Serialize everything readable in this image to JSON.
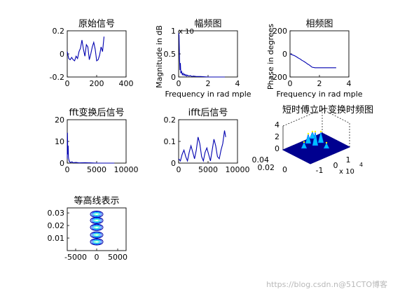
{
  "chart_data": [
    {
      "type": "line",
      "title": "原始信号",
      "xlim": [
        0,
        400
      ],
      "ylim": [
        -0.2,
        0.2
      ],
      "x_ticks": [
        0,
        200,
        400
      ],
      "y_ticks": [
        -0.2,
        0,
        0.2
      ],
      "x_tick_labels": [
        "0",
        "200",
        "400"
      ],
      "y_tick_labels": [
        "-0.2",
        "0",
        "0.2"
      ],
      "color": "#0000b0",
      "x": [
        0,
        10,
        20,
        30,
        40,
        50,
        60,
        70,
        80,
        90,
        100,
        110,
        120,
        130,
        140,
        150,
        160,
        170,
        180,
        190,
        200,
        210,
        220,
        230,
        240,
        250
      ],
      "y": [
        0.02,
        -0.04,
        -0.05,
        -0.03,
        -0.05,
        -0.06,
        -0.02,
        -0.04,
        0.02,
        0.05,
        0.12,
        0.04,
        -0.02,
        0.08,
        0.06,
        -0.05,
        0.0,
        0.06,
        0.1,
        0.04,
        -0.06,
        -0.05,
        -0.01,
        0.06,
        0.02,
        0.15
      ]
    },
    {
      "type": "line",
      "title": "幅频图",
      "xlabel": "Frequency in rad mple",
      "ylabel": "Magnitude in dB",
      "exponent_label": "x 10",
      "xlim": [
        0,
        4
      ],
      "ylim": [
        0,
        1
      ],
      "x_ticks": [
        0,
        2,
        4
      ],
      "y_ticks": [
        0,
        0.5,
        1
      ],
      "x_tick_labels": [
        "0",
        "2",
        "4"
      ],
      "y_tick_labels": [
        "0",
        "0.5",
        "1"
      ],
      "color": "#0000b0",
      "x": [
        0,
        0.03,
        0.06,
        0.09,
        0.12,
        0.15,
        0.2,
        0.25,
        0.3,
        0.35,
        0.4,
        0.45,
        0.5,
        0.55,
        0.6,
        0.7,
        0.8,
        0.9,
        1.0,
        1.2,
        1.5,
        2.0,
        2.5,
        3.0,
        3.14
      ],
      "y": [
        0.95,
        0.9,
        0.4,
        0.15,
        0.3,
        0.08,
        0.12,
        0.05,
        0.08,
        0.04,
        0.06,
        0.03,
        0.05,
        0.02,
        0.04,
        0.02,
        0.03,
        0.01,
        0.02,
        0.01,
        0.01,
        0.0,
        0.0,
        0.0,
        0.0
      ]
    },
    {
      "type": "line",
      "title": "相频图",
      "xlabel": "Frequency in rad mple",
      "ylabel": "Phase in degrees",
      "xlim": [
        0,
        4
      ],
      "ylim": [
        -200,
        200
      ],
      "x_ticks": [
        0,
        2,
        4
      ],
      "y_ticks": [
        -200,
        0,
        200
      ],
      "x_tick_labels": [
        "0",
        "2",
        "4"
      ],
      "y_tick_labels": [
        "-200",
        "0",
        "200"
      ],
      "color": "#0000b0",
      "x": [
        0,
        0.1,
        0.2,
        0.3,
        0.4,
        0.5,
        0.6,
        0.7,
        0.8,
        0.9,
        1.0,
        1.1,
        1.2,
        1.3,
        1.4,
        1.5,
        1.7,
        2.0,
        2.5,
        3.0,
        3.14
      ],
      "y": [
        0,
        -5,
        -10,
        -15,
        -22,
        -30,
        -38,
        -45,
        -55,
        -62,
        -70,
        -78,
        -88,
        -95,
        -105,
        -115,
        -120,
        -120,
        -120,
        -120,
        -120
      ]
    },
    {
      "type": "line",
      "title": "fft变换后信号",
      "xlim": [
        0,
        10000
      ],
      "ylim": [
        0,
        20
      ],
      "x_ticks": [
        0,
        5000,
        10000
      ],
      "y_ticks": [
        0,
        10,
        20
      ],
      "x_tick_labels": [
        "0",
        "5000",
        "10000"
      ],
      "y_tick_labels": [
        "0",
        "10",
        "20"
      ],
      "color": "#0000b0",
      "x": [
        0,
        40,
        80,
        120,
        160,
        200,
        240,
        280,
        320,
        400,
        500,
        600,
        800,
        1000,
        1500,
        2000,
        3000,
        4000,
        5000,
        8000
      ],
      "y": [
        2,
        14,
        6,
        4,
        8,
        3,
        2,
        1.5,
        1,
        0.6,
        0.4,
        0.3,
        0.6,
        0.2,
        0.3,
        0.1,
        0.2,
        0.1,
        0.0,
        0.0
      ]
    },
    {
      "type": "line",
      "title": "ifft后信号",
      "xlim": [
        0,
        10000
      ],
      "ylim": [
        0,
        0.2
      ],
      "x_ticks": [
        0,
        5000,
        10000
      ],
      "y_ticks": [
        0,
        0.1,
        0.2
      ],
      "x_tick_labels": [
        "0",
        "5000",
        "10000"
      ],
      "y_tick_labels": [
        "0",
        "0.1",
        "0.2"
      ],
      "color": "#0000b0",
      "x": [
        0,
        300,
        600,
        900,
        1200,
        1500,
        1800,
        2100,
        2400,
        2700,
        3000,
        3300,
        3600,
        3900,
        4200,
        4500,
        4800,
        5100,
        5400,
        5700,
        6000,
        6300,
        6600,
        6900,
        7200,
        7500,
        7800,
        8000
      ],
      "y": [
        0.02,
        0.01,
        0.04,
        0.06,
        0.03,
        0.01,
        0.05,
        0.08,
        0.05,
        0.02,
        0.06,
        0.12,
        0.09,
        0.03,
        0.01,
        0.05,
        0.07,
        0.04,
        0.01,
        0.06,
        0.11,
        0.08,
        0.03,
        0.02,
        0.06,
        0.09,
        0.15,
        0.12
      ]
    },
    {
      "type": "surface",
      "title": "短时傅立叶变换时频图",
      "z_tick_labels": [
        "0",
        "2",
        "4"
      ],
      "y_tick_labels": [
        "0.04",
        "0.02",
        "0"
      ],
      "x_tick_labels": [
        "-1",
        "0",
        "1"
      ],
      "x_exponent_label": "x 10",
      "x_exponent_power": "4",
      "colormap": [
        "#00008f",
        "#0040ff",
        "#00c0ff",
        "#60ffa0",
        "#ffff00"
      ]
    },
    {
      "type": "contour",
      "title": "等高线表示",
      "xlim": [
        -7000,
        7000
      ],
      "ylim": [
        0,
        0.034
      ],
      "x_ticks": [
        -5000,
        0,
        5000
      ],
      "y_ticks": [
        0.01,
        0.02,
        0.03
      ],
      "x_tick_labels": [
        "-5000",
        "0",
        "5000"
      ],
      "y_tick_labels": [
        "0.01",
        "0.02",
        "0.03"
      ],
      "centers_y": [
        0.007,
        0.0125,
        0.0185,
        0.024,
        0.029
      ],
      "colors": [
        "#0000a0",
        "#0050ff",
        "#00b0ff",
        "#40ffc0"
      ]
    }
  ],
  "watermark": "https://blog.csdn.n@51CTO博客"
}
